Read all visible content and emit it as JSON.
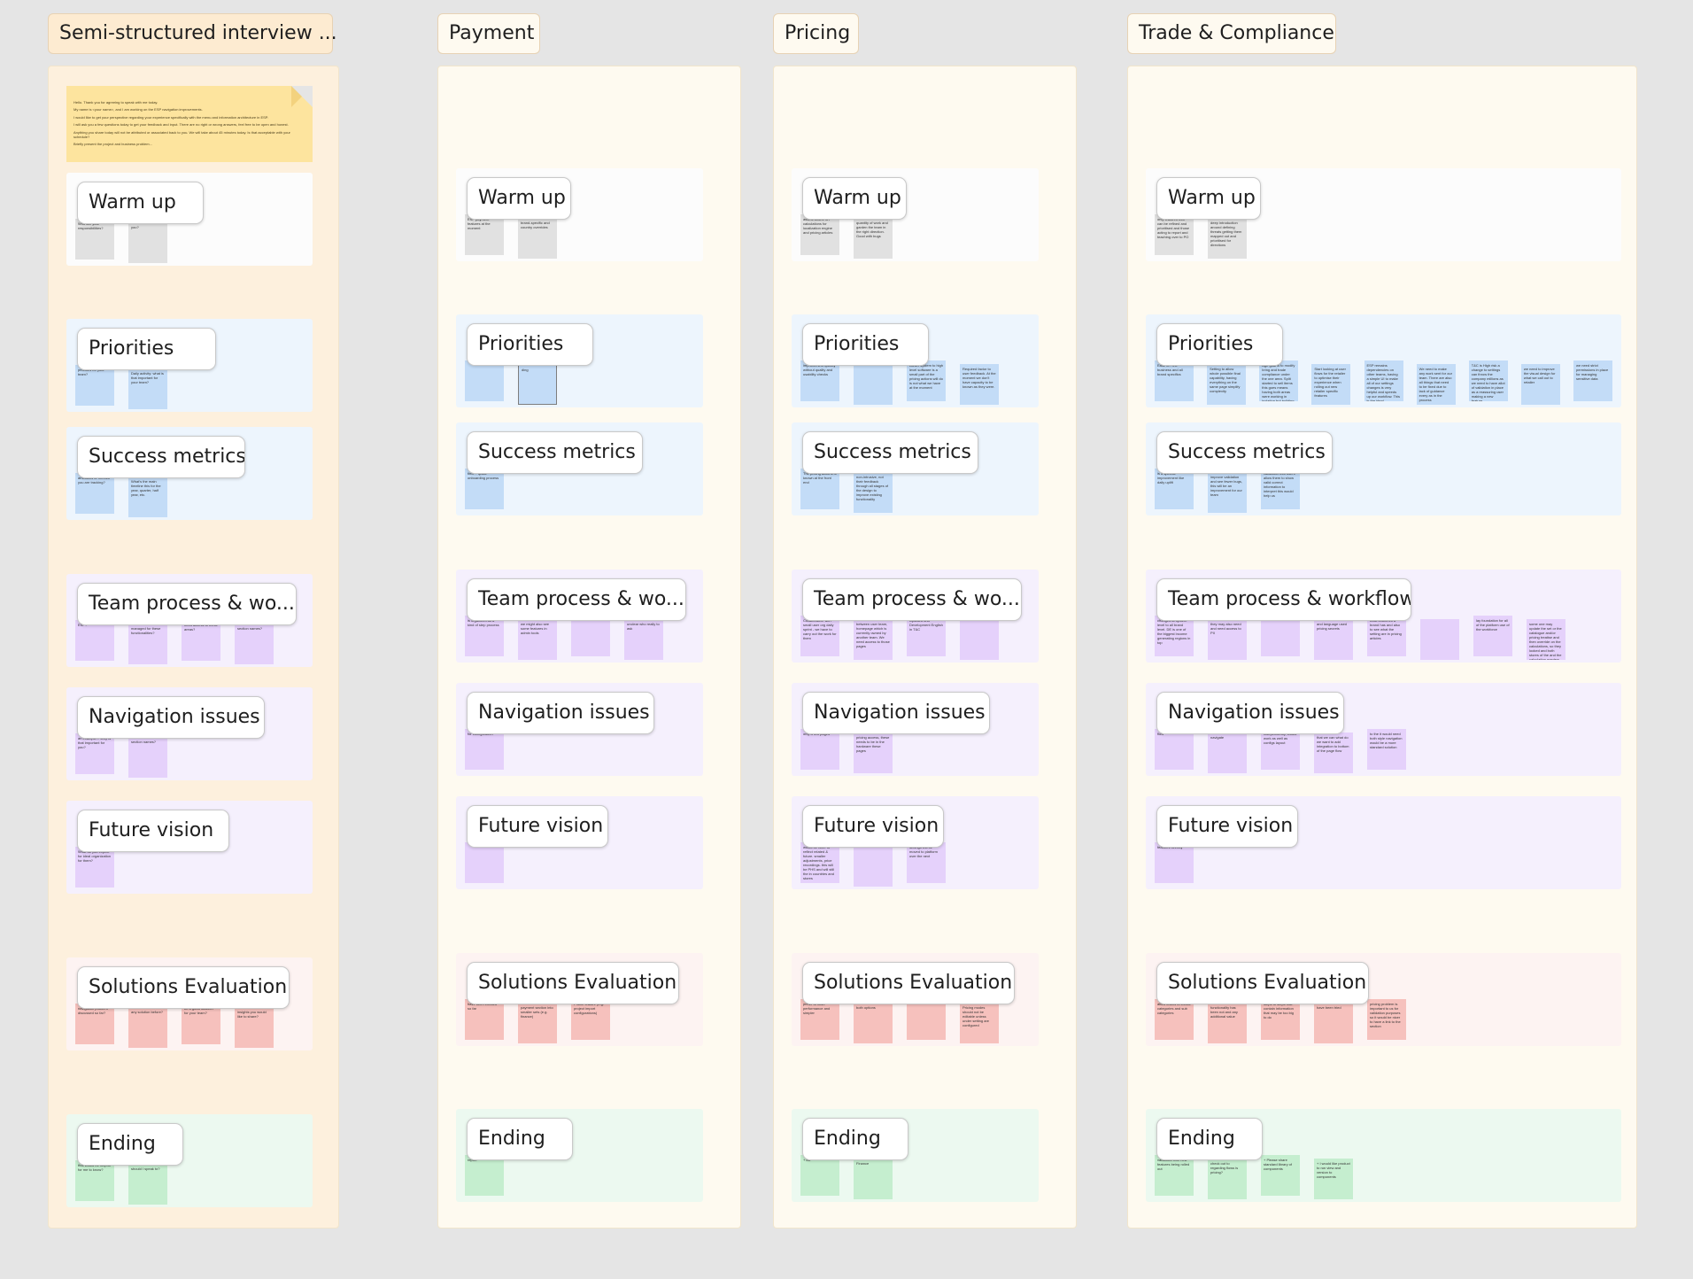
{
  "columns": [
    {
      "title": "Semi-structured interview ...",
      "intro_note": {
        "lines": [
          "Hello. Thank you for agreeing to speak with me today.",
          "My name is <your name>, and I am working on the ESP navigation improvements.",
          "I would like to get your perspective regarding your experience specifically with the menu and information architecture in ESP.",
          "I will ask you a few questions today to get your feedback and input. There are no right or wrong answers, feel free to be open and honest.",
          "Anything you share today will not be attributed or associated back to you. We will take about 45 minutes today. Is that acceptable with your schedule?",
          "Briefly present the project and business problem..."
        ]
      },
      "sections": [
        {
          "label": "Warm up",
          "stickies": [
            "Who are your responsibilities?",
            "you?"
          ]
        },
        {
          "label": "Priorities",
          "stickies": [
            "priorities for your team?",
            "Daily activity: what is that important for your team?"
          ]
        },
        {
          "label": "Success metrics",
          "stickies": [
            "ambitions or metrics you are tracking?",
            "What's the main timeline this for the year, quarter, half year, etc."
          ]
        },
        {
          "label": "Team process & wo...",
          "stickies": [
            "ESP?",
            "managed for these functionalities?",
            "need access to these areas?",
            "section names?"
          ]
        },
        {
          "label": "Navigation issues",
          "stickies": [
            "an example... Why is that important for you?",
            "section names?"
          ]
        },
        {
          "label": "Future vision",
          "stickies": [
            "What do you expect for ideal organization for them?"
          ]
        },
        {
          "label": "Solutions Evaluation",
          "stickies": [
            "navigation problem discussed so far?",
            "any solution before?",
            "be a good solution for your team?",
            "insights you would like to share?"
          ]
        },
        {
          "label": "Ending",
          "stickies": [
            "that would be helpful for me to know?",
            "should I speak to?"
          ]
        }
      ]
    },
    {
      "title": "Payment",
      "sections": [
        {
          "label": "Warm up",
          "stickies": [
            "ESP payment features at the moment",
            "brand-specific and country overrides"
          ]
        },
        {
          "label": "Priorities",
          "stickies": [
            "",
            "ding"
          ]
        },
        {
          "label": "Success metrics",
          "stickies": [
            "time + quick onboarding process"
          ]
        },
        {
          "label": "Team process & wo...",
          "stickies": [
            "is organized as a kind of step process",
            "we might also see some features in admin tools",
            "",
            "unclear who really to ask"
          ]
        },
        {
          "label": "Navigation issues",
          "stickies": [
            "for configuration"
          ]
        },
        {
          "label": "Future vision",
          "stickies": [
            ""
          ]
        },
        {
          "label": "Solutions Evaluation",
          "stickies": [
            "have been created so far",
            "payment section into smaller sets (e.g. finance)",
            "Profile feature (e.g. project import configurations)"
          ]
        },
        {
          "label": "Ending",
          "stickies": [
            "report"
          ]
        }
      ]
    },
    {
      "title": "Pricing",
      "sections": [
        {
          "label": "Warm up",
          "stickies": [
            "assets and/or on calculations for localization engine and pricing articles",
            "quantity of work and garden the team in the right direction. Good with bugs"
          ]
        },
        {
          "label": "Priorities",
          "stickies": [
            "improvement quickly without quality and usability checks",
            "",
            "earlier system to high level software is a small part of the pricing actions will do is not what we have at the moment",
            "Required factor to user feedback. At the moment we don't have capacity to be known as they were."
          ]
        },
        {
          "label": "Success metrics",
          "stickies": [
            "The pricing actions is known at the front end",
            "non-intrusive, not their feedback through all stages of the design to improve existing functionality"
          ]
        },
        {
          "label": "Team process & wo...",
          "stickies": [
            "Collaborative with small user org daily sprint - we have to carry out the work for them",
            "between user team, homepage which is currently owned by another team. We need access to those pages",
            "Updated and Development English in T&C",
            ""
          ]
        },
        {
          "label": "Navigation issues",
          "stickies": [
            "only a few pages",
            "pricing access, these needs to be in the hardware these pages"
          ]
        },
        {
          "label": "Future vision",
          "stickies": [
            "would be nicer to reflect related & future. smaller adjustments, price recordings. this will be PHS and will still the in countries and stores",
            "",
            "settings will be moved to platform over the next"
          ]
        },
        {
          "label": "Solutions Evaluation",
          "stickies": [
            "prefer to have performance and simpler",
            "both options",
            "",
            "Pricing modes should not be editable unless under setting are configured"
          ]
        },
        {
          "label": "Ending",
          "stickies": [
            "+ list",
            "Finance"
          ]
        }
      ]
    },
    {
      "title": "Trade & Compliance",
      "sections": [
        {
          "label": "Warm up",
          "stickies": [
            "only features that can be refined and prioritised and those acting to report and teaching over to PO",
            "deep introduction around defining threats getting them mapped out and prioritised for directions"
          ]
        },
        {
          "label": "Priorities",
          "stickies": [
            "Ease of - the business and all brand specifics",
            "Setting to allow whole possible final capability, having everything on the same page simplify complexity",
            "Age goal is to modify bring and trade compliance under the one area. Split started to sell items this goes means having both areas were working in isolation but building the same logic than more complexity with each other",
            "Start looking at user flows for the retailer to optimise their experience when rolling out new retailer specific features",
            "ESP remains dependencies on other teams, having a simple UI to make all of our settings changes is very helpful and speeds up our workflow. This is the ideal",
            "We need to make any work sent for our team. There are also all things that need to be fixed due to lack of guidance every as in the process",
            "T&C is High risk a change to settings can throw the company millions as we need to have allot of validation in place as a reassuring user making a new feature",
            "we need to improve the visual design for what we call out to retailer",
            "we need strict permissions in place for managing sensitive data"
          ]
        },
        {
          "label": "Success metrics",
          "stickies": [
            "is a specific improvement like daily uplift",
            "improve validation and see fewer bugs, this will be an improvement for our team",
            "validation that users allow them to show valid correct information to interpret this would help us"
          ]
        },
        {
          "label": "Team process & workflow",
          "stickies": [
            "changes at system level to all brand level. DE is one of the biggest income generating regions in top",
            "they may also need and need access to PII",
            "",
            "and language used pricing secrets",
            "what countries a brand has and also to see what the setting are in pricing articles",
            "",
            "lay foundation for all of the platform use of the workforce",
            "some one may update the set or the catalogue and/or pricing treatise and then override on the calculations, so they looked and both stores of the and the calculation preview"
          ]
        },
        {
          "label": "Navigation issues",
          "stickies": [
            "flow",
            "navigate",
            "independently, would work as well as configs layout",
            "that we can what do we want to add integration to bottom of the page flow",
            "to the it would need both style navigation would be a more standard solution"
          ]
        },
        {
          "label": "Future vision",
          "stickies": [
            "features overlay"
          ]
        },
        {
          "label": "Solutions Evaluation",
          "stickies": [
            "allow teams to create categories and sub categories",
            "functionality has been not and any additional value",
            "steps to steps that contain information that may be too big to do",
            "have been tried",
            "pricing problem is important to us for validation purposes so it would be nicer to have a link to the section"
          ]
        },
        {
          "label": "Ending",
          "stickies": [
            "validation with new features being rolled out",
            "check out to regarding flows is pricing?",
            "+ Please share standard library of components",
            "+ I would like product to run view and version to components"
          ]
        }
      ]
    }
  ]
}
